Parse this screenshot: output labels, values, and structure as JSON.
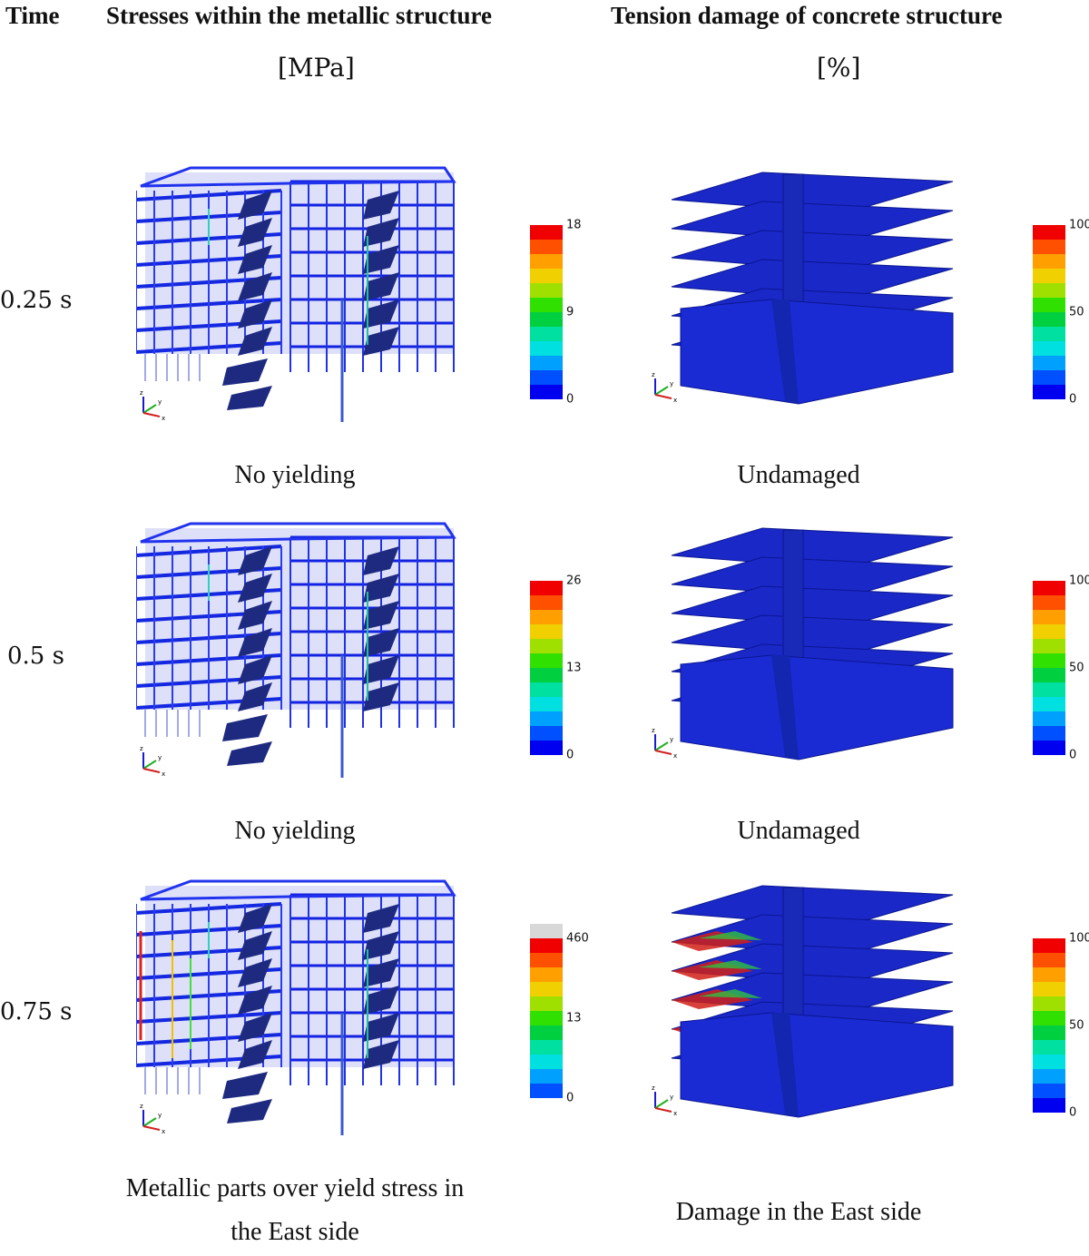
{
  "headers": {
    "time": "Time",
    "metal": "Stresses within the metallic structure",
    "concrete": "Tension damage of concrete structure"
  },
  "units": {
    "metal": "[MPa]",
    "concrete": "[%]"
  },
  "colorbar_colors": [
    "#0000f0",
    "#0050ff",
    "#00a0ff",
    "#00e0e0",
    "#00e0a0",
    "#00d040",
    "#30e000",
    "#a0e000",
    "#f0d000",
    "#ffa000",
    "#ff5000",
    "#f00000"
  ],
  "rows": [
    {
      "time": "0.25 s",
      "metal_caption": "No yielding",
      "concrete_caption": "Undamaged",
      "metal_scale": {
        "max": "18",
        "mid": "9",
        "min": "0",
        "over_yield": false
      },
      "concrete_scale": {
        "max": "100",
        "mid": "50",
        "min": "0"
      },
      "damage": 0
    },
    {
      "time": "0.5 s",
      "metal_caption": "No yielding",
      "concrete_caption": "Undamaged",
      "metal_scale": {
        "max": "26",
        "mid": "13",
        "min": "0",
        "over_yield": false
      },
      "concrete_scale": {
        "max": "100",
        "mid": "50",
        "min": "0"
      },
      "damage": 0
    },
    {
      "time": "0.75 s",
      "metal_caption": "Metallic parts over yield stress in\nthe East side",
      "concrete_caption": "Damage in the East side",
      "metal_scale": {
        "max": "460",
        "mid": "13",
        "min": "0",
        "over_yield": true
      },
      "concrete_scale": {
        "max": "100",
        "mid": "50",
        "min": "0"
      },
      "damage": 1
    }
  ],
  "axis_triad": {
    "z": "z",
    "y": "y",
    "x": "x"
  }
}
